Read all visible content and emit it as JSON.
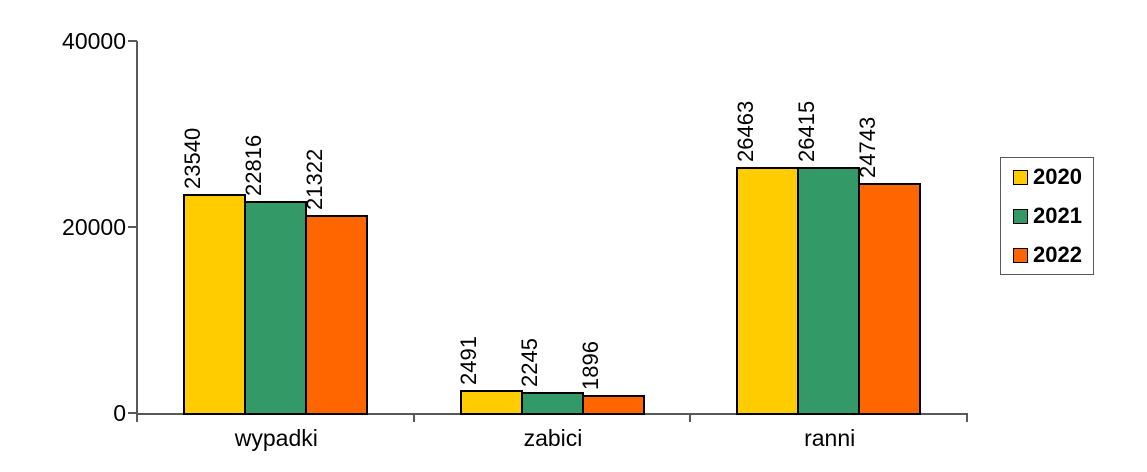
{
  "chart_data": {
    "type": "bar",
    "categories": [
      "wypadki",
      "zabici",
      "ranni"
    ],
    "series": [
      {
        "name": "2020",
        "color": "#FFCC00",
        "values": [
          23540,
          2491,
          26463
        ]
      },
      {
        "name": "2021",
        "color": "#339966",
        "values": [
          22816,
          2245,
          26415
        ]
      },
      {
        "name": "2022",
        "color": "#FF6600",
        "values": [
          21322,
          1896,
          24743
        ]
      }
    ],
    "ylim": [
      0,
      40000
    ],
    "yticks": [
      0,
      20000,
      40000
    ],
    "ytick_labels": [
      "0",
      "20000",
      "40000"
    ],
    "value_labels_rotated": true,
    "legend_position": "right",
    "grid": false,
    "style": {
      "axis_color": "#595959",
      "bar_border_color": "#000000",
      "text_color": "#000000",
      "background": "#ffffff"
    }
  }
}
